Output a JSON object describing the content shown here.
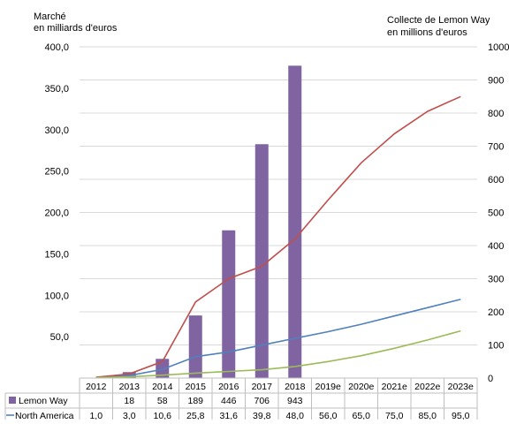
{
  "chart_data": {
    "type": "bar",
    "left_axis_title": [
      "Marché",
      "en milliards d'euros"
    ],
    "right_axis_title": [
      "Collecte de Lemon Way",
      "en millions d'euros"
    ],
    "categories": [
      "2012",
      "2013",
      "2014",
      "2015",
      "2016",
      "2017",
      "2018",
      "2019e",
      "2020e",
      "2021e",
      "2022e",
      "2023e"
    ],
    "left_axis": {
      "ylim": [
        0,
        400
      ],
      "ticks": [
        "400,0",
        "350,0",
        "300,0",
        "250,0",
        "200,0",
        "150,0",
        "100,0",
        "50,0",
        ""
      ]
    },
    "right_axis": {
      "ylim": [
        0,
        1000
      ],
      "ticks": [
        "1000",
        "900",
        "800",
        "700",
        "600",
        "500",
        "400",
        "300",
        "200",
        "100",
        "0"
      ]
    },
    "grid": "horizontal",
    "bars": {
      "name": "Lemon Way",
      "axis": "right",
      "color": "#8064a2",
      "values": [
        null,
        18,
        58,
        189,
        446,
        706,
        943,
        null,
        null,
        null,
        null,
        null
      ],
      "labels": [
        "",
        "18",
        "58",
        "189",
        "446",
        "706",
        "943",
        "",
        "",
        "",
        "",
        ""
      ]
    },
    "series": [
      {
        "name": "North America",
        "axis": "left",
        "color": "#4f81bd",
        "values": [
          1.0,
          3.0,
          10.6,
          25.8,
          31.6,
          39.8,
          48.0,
          56.0,
          65.0,
          75.0,
          85.0,
          95.0
        ],
        "labels": [
          "1,0",
          "3,0",
          "10,6",
          "25,8",
          "31,6",
          "39,8",
          "48,0",
          "56,0",
          "65,0",
          "75,0",
          "85,0",
          "95,0"
        ]
      },
      {
        "axis": "left",
        "color": "#c0504d",
        "values": [
          1.0,
          5.0,
          20.0,
          92.0,
          120.0,
          135.0,
          168.0,
          215.0,
          260.0,
          295.0,
          322.0,
          340.0
        ]
      },
      {
        "axis": "left",
        "color": "#9bbb59",
        "values": [
          0.5,
          1.5,
          3.5,
          6.0,
          8.0,
          10.0,
          14.0,
          20.0,
          27.0,
          36.0,
          46.0,
          57.0
        ]
      }
    ]
  }
}
